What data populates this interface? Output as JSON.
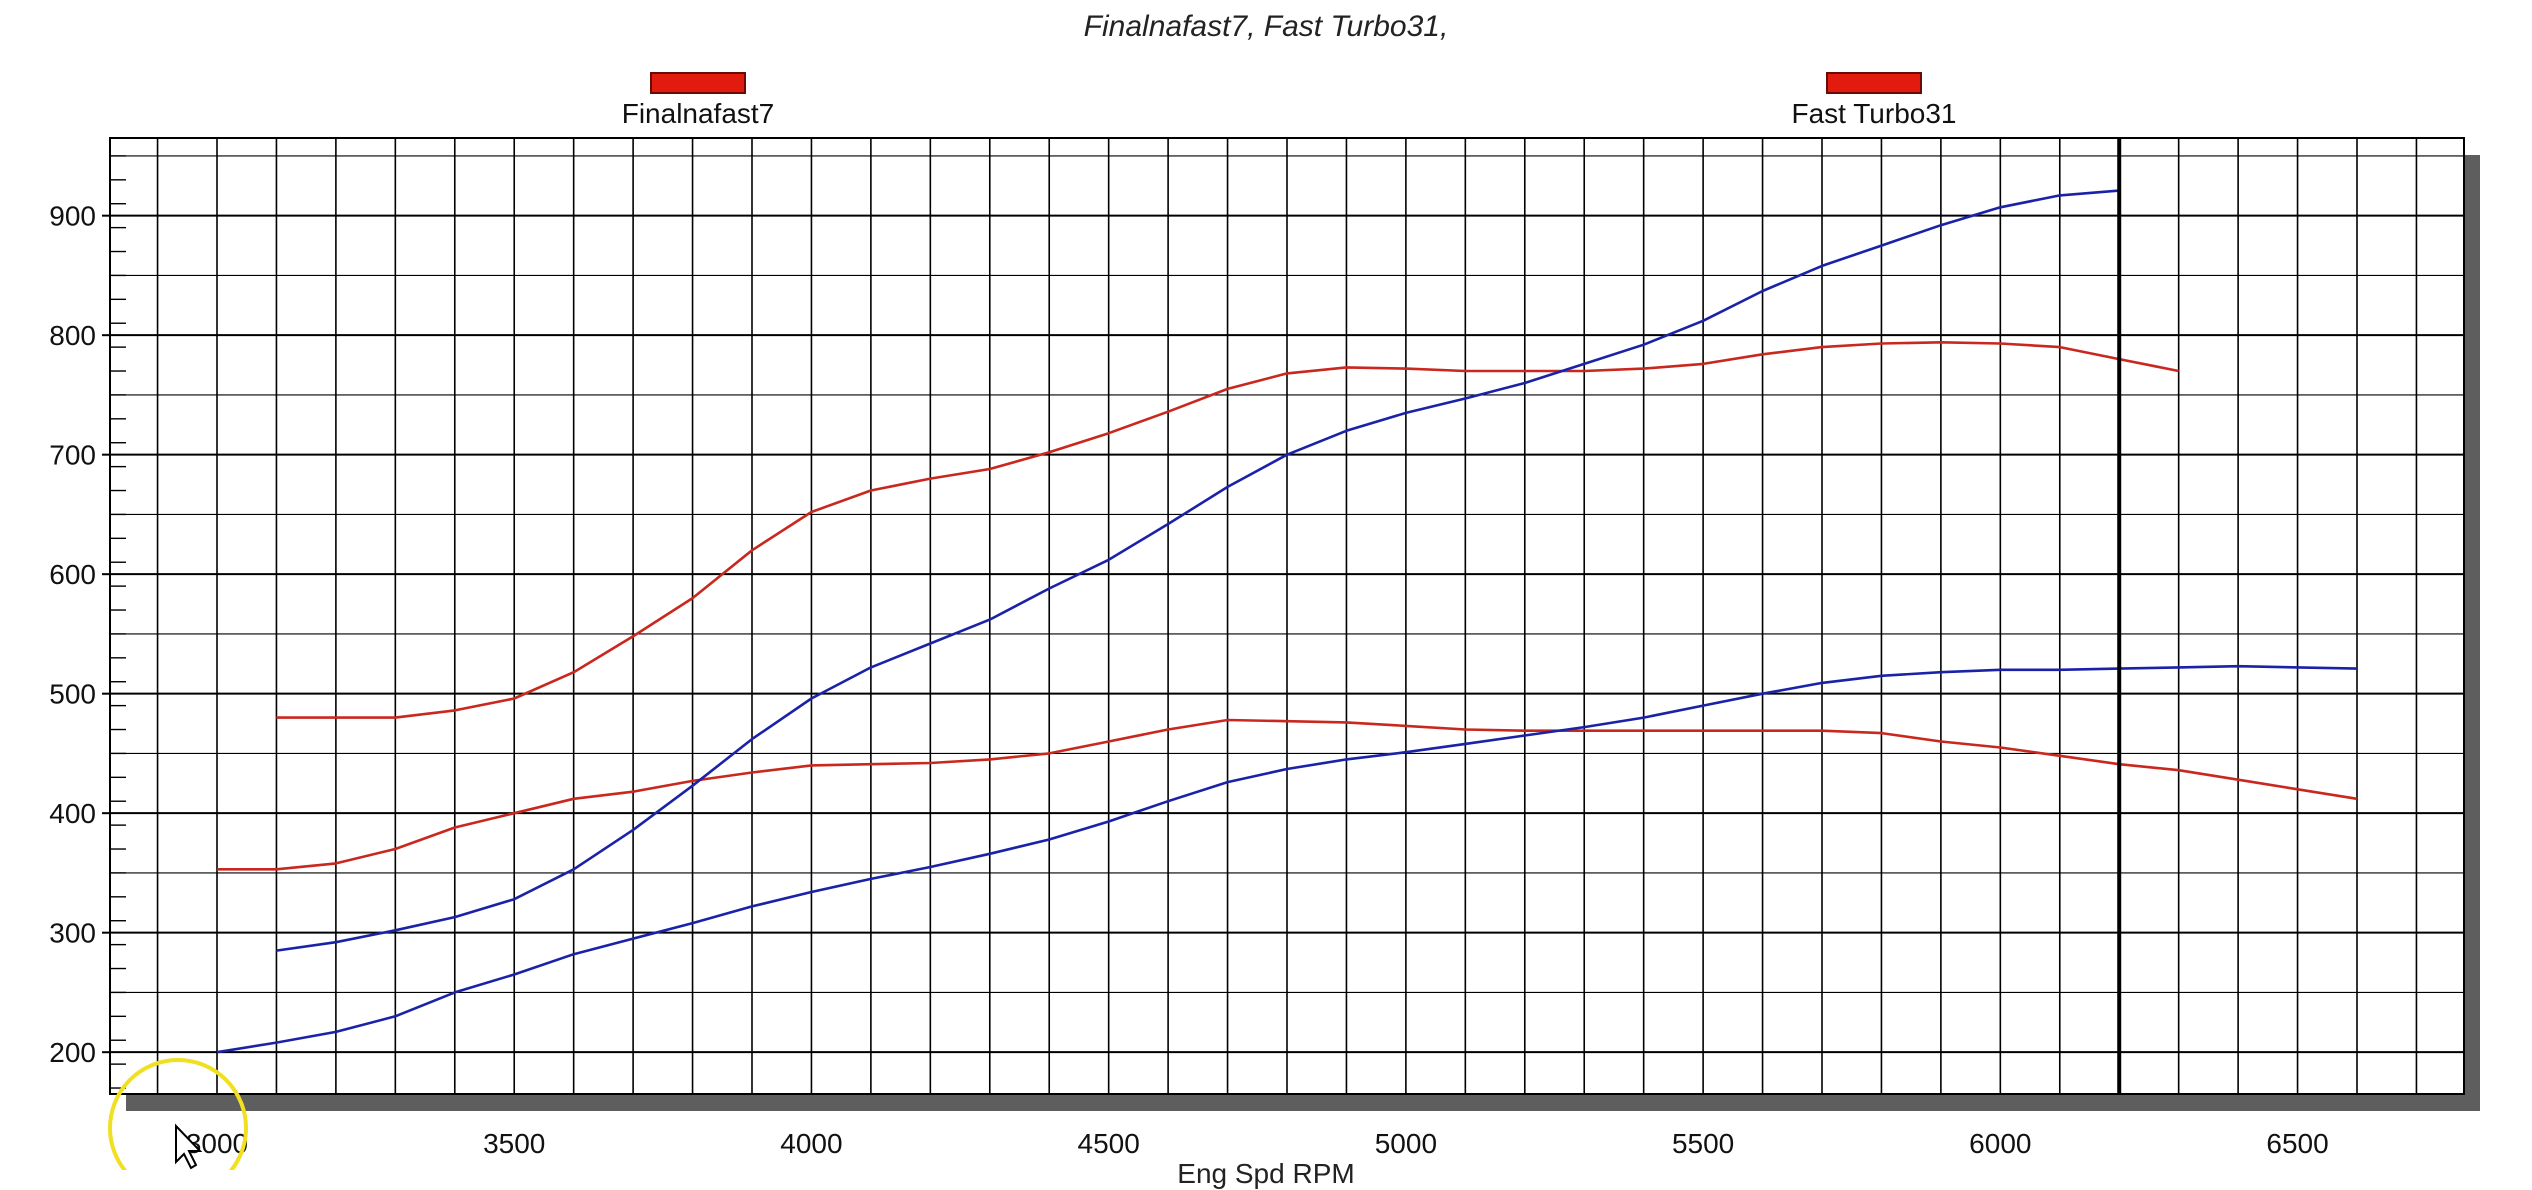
{
  "chart_data": {
    "type": "line",
    "title": "Finalnafast7, Fast Turbo31,",
    "xlabel": "Eng Spd RPM",
    "ylabel": "",
    "xlim": [
      2820,
      6780
    ],
    "ylim": [
      165,
      965
    ],
    "x_ticks": [
      3000,
      3500,
      4000,
      4500,
      5000,
      5500,
      6000,
      6500
    ],
    "y_ticks": [
      200,
      300,
      400,
      500,
      600,
      700,
      800,
      900
    ],
    "x_tick_labels": [
      "3000",
      "3500",
      "4000",
      "4500",
      "5000",
      "5500",
      "6000",
      "6500"
    ],
    "y_tick_labels": [
      "200",
      "300",
      "400",
      "500",
      "600",
      "700",
      "800",
      "900"
    ],
    "cursor_rpm": 6200,
    "grid": true,
    "legend": {
      "placement": "top",
      "entries": [
        {
          "label": "Finalnafast7",
          "color": "#e21b0f"
        },
        {
          "label": "Fast Turbo31",
          "color": "#e21b0f"
        }
      ]
    },
    "series": [
      {
        "color": "#c8281e",
        "x": [
          3100,
          3200,
          3300,
          3400,
          3500,
          3600,
          3700,
          3800,
          3900,
          4000,
          4100,
          4200,
          4300,
          4400,
          4500,
          4600,
          4700,
          4800,
          4900,
          5000,
          5100,
          5200,
          5300,
          5400,
          5500,
          5600,
          5700,
          5800,
          5900,
          6000,
          6100,
          6200,
          6300
        ],
        "y": [
          480,
          480,
          480,
          486,
          496,
          518,
          548,
          580,
          620,
          652,
          670,
          680,
          688,
          702,
          718,
          736,
          755,
          768,
          773,
          772,
          770,
          770,
          770,
          772,
          776,
          784,
          790,
          793,
          794,
          793,
          790,
          780,
          770
        ]
      },
      {
        "color": "#c8281e",
        "x": [
          3000,
          3100,
          3200,
          3300,
          3400,
          3500,
          3600,
          3700,
          3800,
          3900,
          4000,
          4100,
          4200,
          4300,
          4400,
          4500,
          4600,
          4700,
          4800,
          4900,
          5000,
          5100,
          5200,
          5300,
          5400,
          5500,
          5600,
          5700,
          5800,
          5900,
          6000,
          6100,
          6200,
          6300,
          6400,
          6500,
          6600
        ],
        "y": [
          353,
          353,
          358,
          370,
          388,
          400,
          412,
          418,
          427,
          434,
          440,
          441,
          442,
          445,
          450,
          460,
          470,
          478,
          477,
          476,
          473,
          470,
          469,
          469,
          469,
          469,
          469,
          469,
          467,
          460,
          455,
          448,
          441,
          436,
          428,
          420,
          412
        ]
      },
      {
        "color": "#1a22a8",
        "x": [
          3100,
          3200,
          3300,
          3400,
          3500,
          3600,
          3700,
          3800,
          3900,
          4000,
          4100,
          4200,
          4300,
          4400,
          4500,
          4600,
          4700,
          4800,
          4900,
          5000,
          5100,
          5200,
          5300,
          5400,
          5500,
          5600,
          5700,
          5800,
          5900,
          6000,
          6100,
          6200
        ],
        "y": [
          285,
          292,
          302,
          313,
          328,
          353,
          386,
          423,
          462,
          496,
          522,
          542,
          562,
          588,
          612,
          642,
          673,
          700,
          720,
          735,
          747,
          760,
          776,
          792,
          812,
          837,
          858,
          875,
          892,
          907,
          917,
          921
        ]
      },
      {
        "color": "#1a22a8",
        "x": [
          3000,
          3100,
          3200,
          3300,
          3400,
          3500,
          3600,
          3700,
          3800,
          3900,
          4000,
          4100,
          4200,
          4300,
          4400,
          4500,
          4600,
          4700,
          4800,
          4900,
          5000,
          5100,
          5200,
          5300,
          5400,
          5500,
          5600,
          5700,
          5800,
          5900,
          6000,
          6100,
          6200,
          6300,
          6400,
          6500,
          6600
        ],
        "y": [
          200,
          208,
          217,
          230,
          250,
          265,
          282,
          295,
          308,
          322,
          334,
          345,
          355,
          366,
          378,
          393,
          410,
          426,
          437,
          445,
          451,
          458,
          465,
          472,
          480,
          490,
          500,
          509,
          515,
          518,
          520,
          520,
          521,
          522,
          523,
          522,
          521
        ]
      }
    ]
  }
}
